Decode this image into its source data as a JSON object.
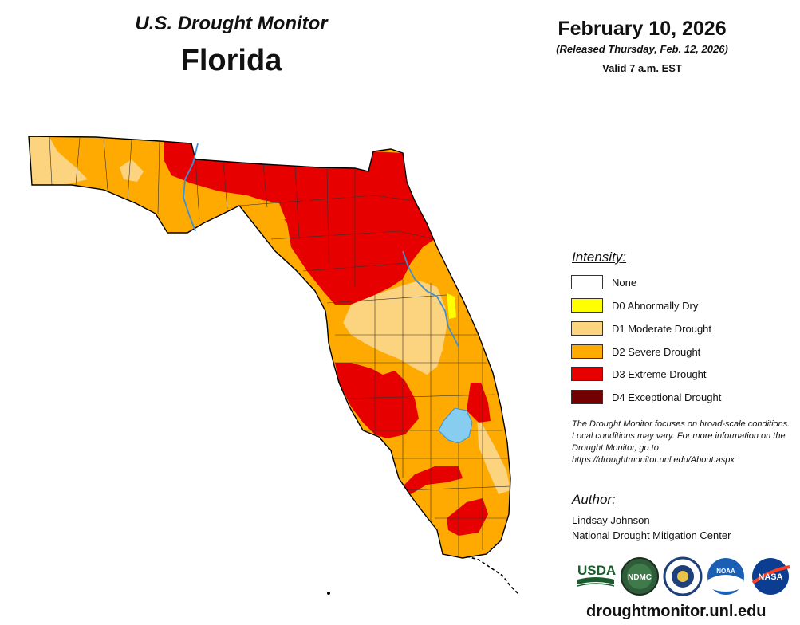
{
  "header": {
    "subtitle": "U.S. Drought Monitor",
    "state": "Florida",
    "date": "February 10, 2026",
    "released": "(Released Thursday, Feb. 12, 2026)",
    "valid": "Valid 7 a.m. EST"
  },
  "legend": {
    "title": "Intensity:",
    "items": [
      {
        "label": "None",
        "color": "#ffffff"
      },
      {
        "label": "D0 Abnormally Dry",
        "color": "#ffff00"
      },
      {
        "label": "D1 Moderate Drought",
        "color": "#fcd37f"
      },
      {
        "label": "D2 Severe Drought",
        "color": "#ffaa00"
      },
      {
        "label": "D3 Extreme Drought",
        "color": "#e60000"
      },
      {
        "label": "D4 Exceptional Drought",
        "color": "#730000"
      }
    ]
  },
  "note": "The Drought Monitor focuses on broad-scale conditions. Local conditions may vary. For more information on the Drought Monitor, go to https://droughtmonitor.unl.edu/About.aspx",
  "author": {
    "title": "Author:",
    "name": "Lindsay Johnson",
    "organization": "National Drought Mitigation Center"
  },
  "logos": {
    "usda": "USDA",
    "ndmc": "NDMC",
    "noaa": "NOAA",
    "nasa": "NASA",
    "icons": [
      "usda-logo",
      "ndmc-logo",
      "doc-seal",
      "noaa-logo",
      "nasa-logo"
    ]
  },
  "website": "droughtmonitor.unl.edu",
  "colors": {
    "lake": "#87cdf0",
    "river": "#3d8fd6",
    "county_border": "#333333"
  }
}
